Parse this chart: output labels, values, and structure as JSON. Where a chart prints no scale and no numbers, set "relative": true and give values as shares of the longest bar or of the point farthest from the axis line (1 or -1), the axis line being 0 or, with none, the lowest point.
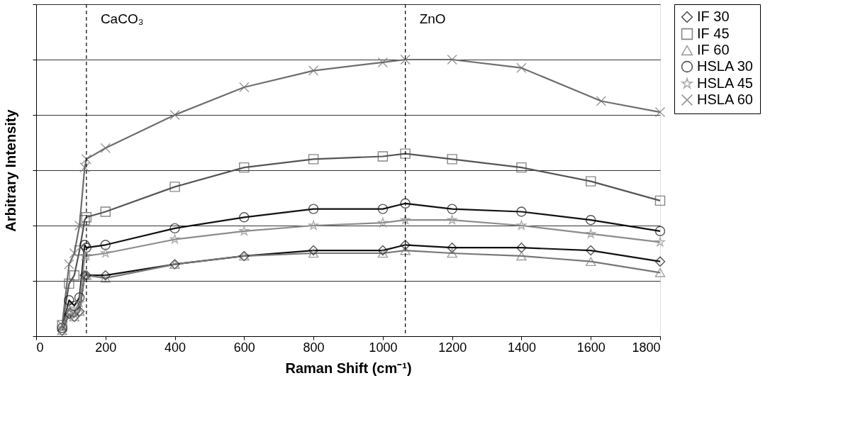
{
  "chart_data": {
    "type": "line",
    "relative": true,
    "xlabel": "Raman Shift (cm⁻¹)",
    "ylabel": "Arbitrary Intensity",
    "x": [
      75,
      95,
      110,
      125,
      140,
      145,
      200,
      400,
      600,
      800,
      1000,
      1065,
      1200,
      1400,
      1600,
      1800
    ],
    "xlim": [
      0,
      1800
    ],
    "xticks": [
      0,
      200,
      400,
      600,
      800,
      1000,
      1200,
      1400,
      1600,
      1800
    ],
    "grid": "y",
    "legend": "top right",
    "line_style": "solid",
    "ref_lines": [
      {
        "axis": "x",
        "value": 145,
        "label": "CaCO₃",
        "color": "#000000",
        "line_style": "dashed"
      },
      {
        "axis": "x",
        "value": 1065,
        "label": "ZnO",
        "color": "#000000",
        "line_style": "dashed"
      }
    ],
    "series": [
      {
        "name": "IF 30",
        "color": "#111111",
        "marker": "diamond",
        "values": [
          0.02,
          0.08,
          0.07,
          0.09,
          0.22,
          0.22,
          0.22,
          0.26,
          0.29,
          0.31,
          0.31,
          0.33,
          0.32,
          0.32,
          0.31,
          0.27
        ]
      },
      {
        "name": "IF 45",
        "color": "#555555",
        "marker": "square",
        "values": [
          0.04,
          0.19,
          0.22,
          0.31,
          0.42,
          0.43,
          0.45,
          0.54,
          0.61,
          0.64,
          0.65,
          0.66,
          0.64,
          0.61,
          0.56,
          0.49
        ]
      },
      {
        "name": "IF 60",
        "color": "#777777",
        "marker": "triangle",
        "values": [
          0.02,
          0.08,
          0.07,
          0.09,
          0.22,
          0.22,
          0.21,
          0.26,
          0.29,
          0.3,
          0.3,
          0.31,
          0.3,
          0.29,
          0.27,
          0.23
        ]
      },
      {
        "name": "HSLA 30",
        "color": "#111111",
        "marker": "circle",
        "values": [
          0.03,
          0.13,
          0.11,
          0.14,
          0.33,
          0.32,
          0.33,
          0.39,
          0.43,
          0.46,
          0.46,
          0.48,
          0.46,
          0.45,
          0.42,
          0.38
        ]
      },
      {
        "name": "HSLA 45",
        "color": "#8c8c8c",
        "marker": "star",
        "values": [
          0.03,
          0.1,
          0.09,
          0.12,
          0.29,
          0.29,
          0.3,
          0.35,
          0.38,
          0.4,
          0.41,
          0.42,
          0.42,
          0.4,
          0.37,
          0.34
        ]
      },
      {
        "name": "HSLA 60",
        "color": "#6e6e6e",
        "marker": "cross",
        "x": [
          75,
          95,
          110,
          125,
          140,
          145,
          200,
          400,
          600,
          800,
          1000,
          1065,
          1200,
          1400,
          1630,
          1800
        ],
        "values": [
          0.04,
          0.26,
          0.3,
          0.4,
          0.61,
          0.64,
          0.68,
          0.8,
          0.9,
          0.96,
          0.99,
          1,
          1,
          0.97,
          0.85,
          0.81
        ]
      }
    ]
  }
}
